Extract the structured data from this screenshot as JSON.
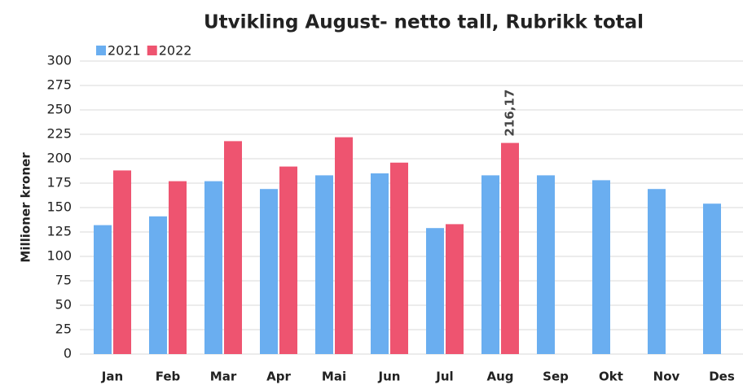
{
  "chart_data": {
    "type": "bar",
    "title": "Utvikling August- netto tall, Rubrikk total",
    "y_label": "Millioner kroner",
    "categories": [
      "Jan",
      "Feb",
      "Mar",
      "Apr",
      "Mai",
      "Jun",
      "Jul",
      "Aug",
      "Sep",
      "Okt",
      "Nov",
      "Des"
    ],
    "series": [
      {
        "name": "2021",
        "color": "#6aaef0",
        "values": [
          132,
          141,
          177,
          169,
          183,
          185,
          129,
          183,
          183,
          178,
          169,
          154
        ]
      },
      {
        "name": "2022",
        "color": "#ee5470",
        "values": [
          188,
          177,
          218,
          192,
          222,
          196,
          133,
          216.17,
          null,
          null,
          null,
          null
        ],
        "value_labels": [
          null,
          null,
          null,
          null,
          null,
          null,
          null,
          "216,17",
          null,
          null,
          null,
          null
        ]
      }
    ],
    "ylim": [
      0,
      300
    ],
    "yticks": [
      0,
      25,
      50,
      75,
      100,
      125,
      150,
      175,
      200,
      225,
      250,
      275,
      300
    ],
    "grid": true,
    "legend": "top-left"
  }
}
